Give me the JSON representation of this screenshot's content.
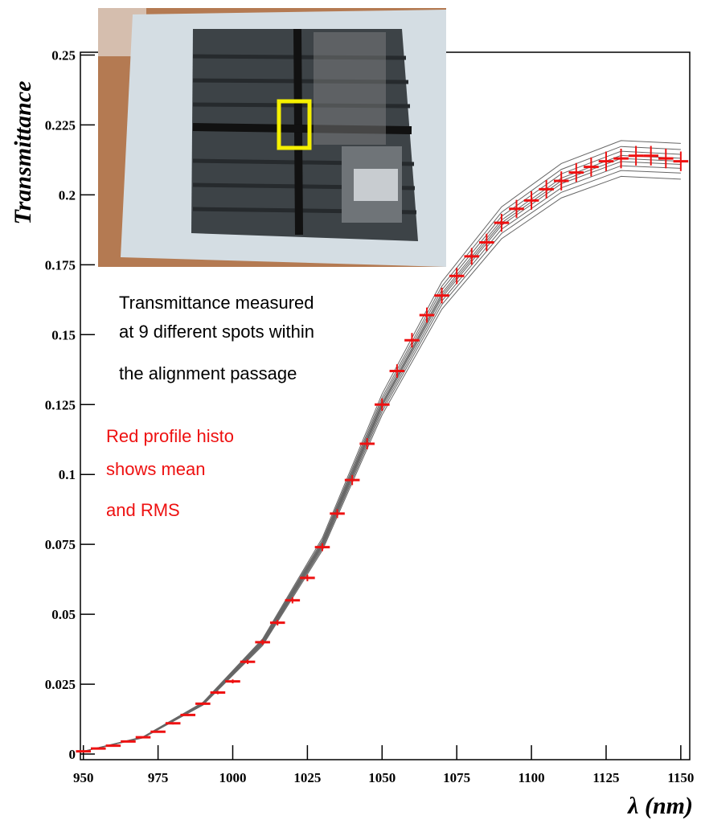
{
  "chart_data": {
    "type": "profile",
    "xlabel": "λ (nm)",
    "ylabel": "Transmittance",
    "xlim": [
      949,
      1153
    ],
    "ylim": [
      -0.002,
      0.251
    ],
    "xticks": [
      950,
      975,
      1000,
      1025,
      1050,
      1075,
      1100,
      1125,
      1150
    ],
    "yticks": [
      0,
      0.025,
      0.05,
      0.075,
      0.1,
      0.125,
      0.15,
      0.175,
      0.2,
      0.225,
      0.25
    ],
    "annotations": [
      {
        "color": "#000000",
        "lines": [
          "Transmittance measured",
          "at 9 different spots within",
          "the alignment passage"
        ]
      },
      {
        "color": "#ee1111",
        "lines": [
          "Red profile histo",
          "shows mean",
          "and RMS"
        ]
      }
    ],
    "spots": {
      "color": "#666666",
      "x": [
        950,
        970,
        990,
        1010,
        1030,
        1050,
        1070,
        1090,
        1110,
        1130,
        1150
      ],
      "series": [
        {
          "values": [
            0.001,
            0.0058,
            0.0175,
            0.0388,
            0.0728,
            0.1213,
            0.1591,
            0.1843,
            0.1989,
            0.2066,
            0.2056
          ]
        },
        {
          "values": [
            0.001,
            0.0059,
            0.0176,
            0.0392,
            0.0735,
            0.1225,
            0.1607,
            0.1862,
            0.2009,
            0.2087,
            0.2078
          ]
        },
        {
          "values": [
            0.001,
            0.0059,
            0.0178,
            0.0395,
            0.0741,
            0.1235,
            0.162,
            0.1877,
            0.2025,
            0.2104,
            0.2095
          ]
        },
        {
          "values": [
            0.001,
            0.006,
            0.0179,
            0.0398,
            0.0746,
            0.1244,
            0.1632,
            0.1891,
            0.204,
            0.2119,
            0.2109
          ]
        },
        {
          "values": [
            0.001,
            0.006,
            0.018,
            0.04,
            0.075,
            0.125,
            0.164,
            0.19,
            0.205,
            0.213,
            0.212
          ]
        },
        {
          "values": [
            0.001,
            0.006,
            0.0181,
            0.0402,
            0.0754,
            0.1256,
            0.1648,
            0.191,
            0.206,
            0.2141,
            0.2131
          ]
        },
        {
          "values": [
            0.001,
            0.0061,
            0.0182,
            0.0405,
            0.0759,
            0.1265,
            0.166,
            0.1923,
            0.2075,
            0.2156,
            0.2145
          ]
        },
        {
          "values": [
            0.001,
            0.0061,
            0.0184,
            0.0408,
            0.0765,
            0.1275,
            0.1673,
            0.1938,
            0.2091,
            0.2173,
            0.2162
          ]
        },
        {
          "values": [
            0.001,
            0.0062,
            0.0185,
            0.0412,
            0.0773,
            0.1288,
            0.1689,
            0.1957,
            0.2112,
            0.2194,
            0.2184
          ]
        }
      ]
    },
    "profile": {
      "color": "#ee1111",
      "bin_width": 5,
      "x": [
        950,
        955,
        960,
        965,
        970,
        975,
        980,
        985,
        990,
        995,
        1000,
        1005,
        1010,
        1015,
        1020,
        1025,
        1030,
        1035,
        1040,
        1045,
        1050,
        1055,
        1060,
        1065,
        1070,
        1075,
        1080,
        1085,
        1090,
        1095,
        1100,
        1105,
        1110,
        1115,
        1120,
        1125,
        1130,
        1135,
        1140,
        1145,
        1150
      ],
      "values": [
        0.001,
        0.002,
        0.003,
        0.0045,
        0.006,
        0.008,
        0.011,
        0.014,
        0.018,
        0.022,
        0.026,
        0.033,
        0.04,
        0.047,
        0.055,
        0.063,
        0.074,
        0.086,
        0.098,
        0.111,
        0.125,
        0.137,
        0.148,
        0.157,
        0.164,
        0.171,
        0.178,
        0.183,
        0.19,
        0.195,
        0.198,
        0.202,
        0.205,
        0.208,
        0.21,
        0.212,
        0.213,
        0.214,
        0.214,
        0.213,
        0.212
      ],
      "rms": [
        0.0002,
        0.0002,
        0.0002,
        0.0003,
        0.0003,
        0.0003,
        0.0004,
        0.0004,
        0.0005,
        0.0006,
        0.0007,
        0.0008,
        0.0009,
        0.001,
        0.0011,
        0.0012,
        0.0014,
        0.0016,
        0.0018,
        0.002,
        0.0022,
        0.0024,
        0.0026,
        0.0027,
        0.0028,
        0.0029,
        0.003,
        0.0031,
        0.0032,
        0.0032,
        0.0033,
        0.0033,
        0.0034,
        0.0034,
        0.0034,
        0.0035,
        0.0035,
        0.0035,
        0.0035,
        0.0035,
        0.0035
      ]
    }
  }
}
